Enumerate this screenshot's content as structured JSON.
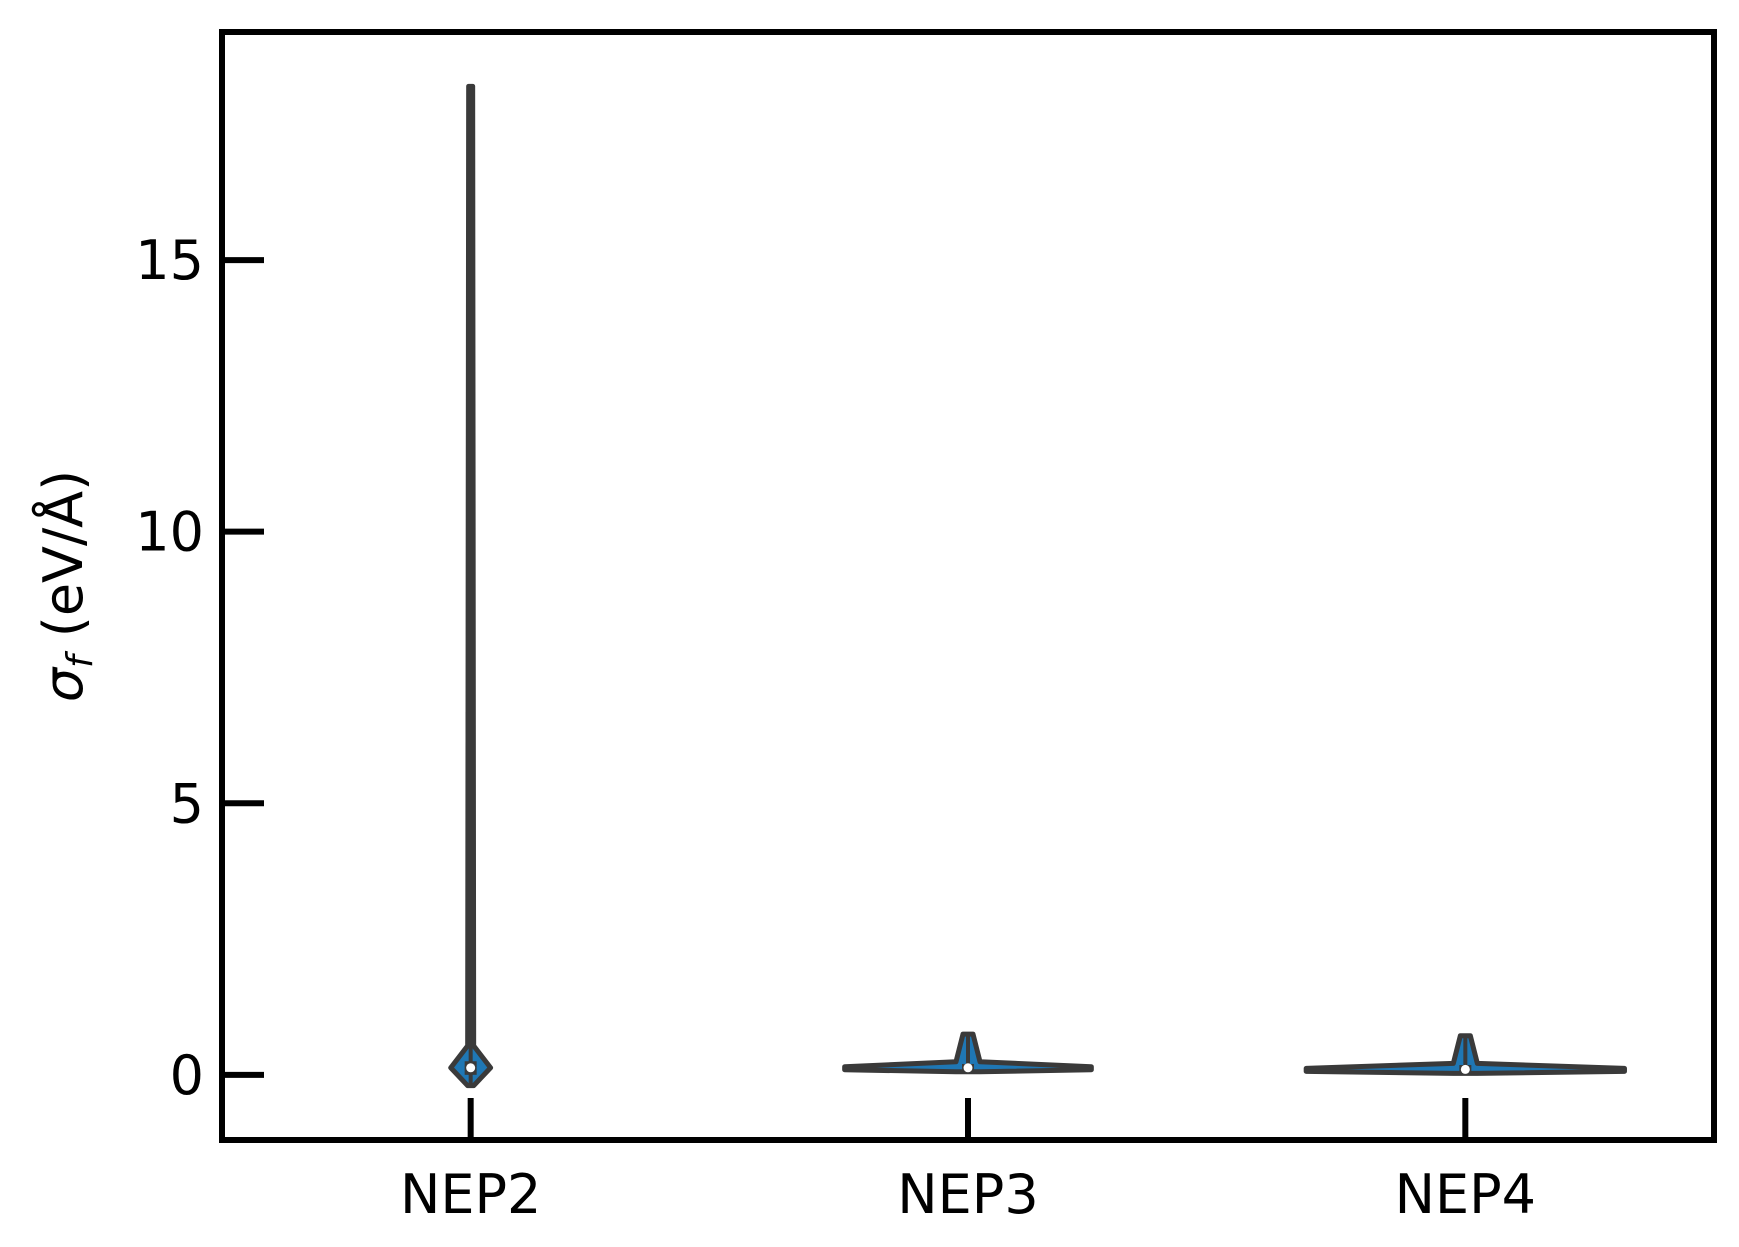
{
  "chart_data": {
    "type": "violin",
    "title": "",
    "xlabel": "",
    "ylabel": "σ_f (eV/Å)",
    "ylabel_parts": {
      "symbol": "σ",
      "subscript": "f",
      "unit": "(eV/Å)"
    },
    "categories": [
      "NEP2",
      "NEP3",
      "NEP4"
    ],
    "ylim": [
      -1.2,
      19.2
    ],
    "yticks": [
      0,
      5,
      10,
      15
    ],
    "grid": false,
    "legend": "none",
    "series": [
      {
        "category": "NEP2",
        "min": -0.2,
        "q1": 0.0,
        "median": 0.13,
        "q3": 0.25,
        "max": 18.2,
        "density_peak_width": 0.1,
        "color": "#1f77b4"
      },
      {
        "category": "NEP3",
        "min": 0.05,
        "q1": 0.07,
        "median": 0.13,
        "q3": 0.2,
        "max": 0.75,
        "density_peak_width": 0.62,
        "color": "#1f77b4"
      },
      {
        "category": "NEP4",
        "min": 0.05,
        "q1": 0.06,
        "median": 0.1,
        "q3": 0.18,
        "max": 0.72,
        "density_peak_width": 0.8,
        "color": "#1f77b4"
      }
    ]
  },
  "colors": {
    "outline": "#3a3a3a",
    "box": "#3a3a3a",
    "median": "#ffffff",
    "fill": "#1f77b4",
    "axis": "#000000"
  }
}
